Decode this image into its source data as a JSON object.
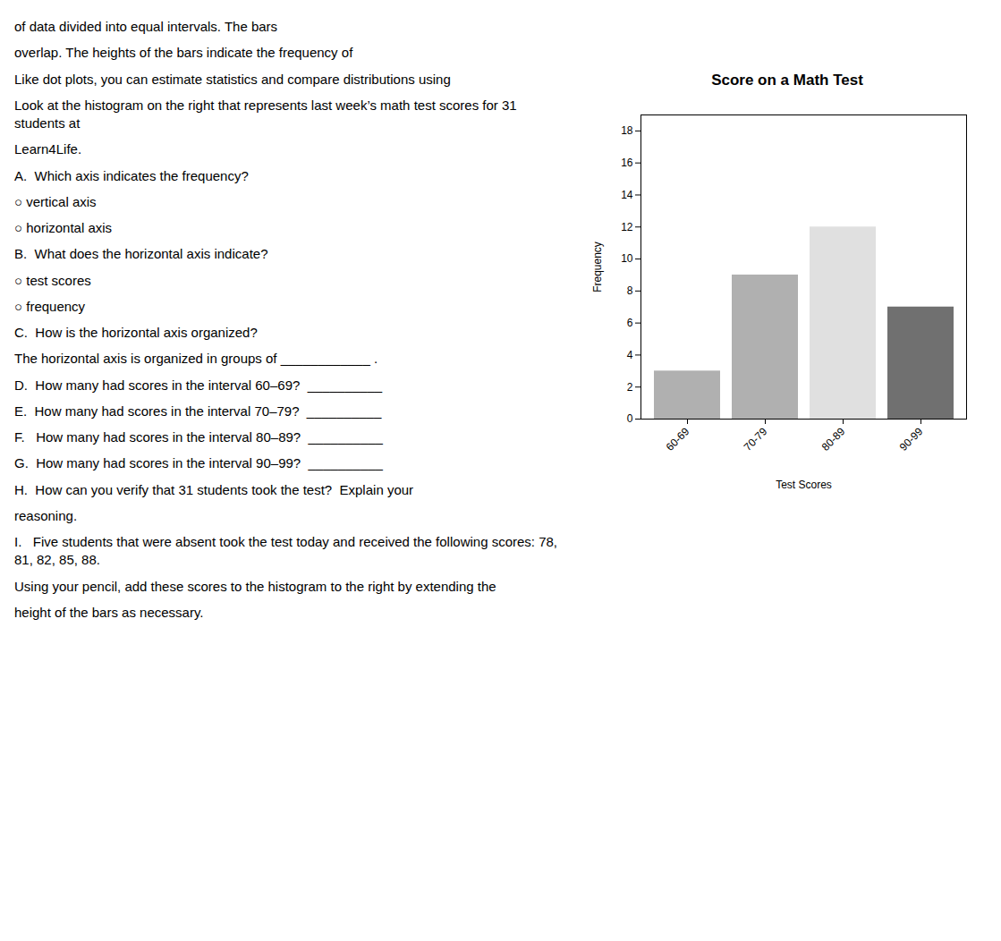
{
  "chart_data": {
    "type": "bar",
    "title": "Score on a Math Test",
    "categories": [
      "60-69",
      "70-79",
      "80-89",
      "90-99"
    ],
    "values": [
      3,
      9,
      12,
      7
    ],
    "colors": [
      "#b0b0b0",
      "#b0b0b0",
      "#e0e0e0",
      "#707070"
    ],
    "ylabel": "Frequency",
    "xlabel": "Test Scores",
    "ylim": [
      0,
      19
    ],
    "yticks": [
      0,
      2,
      4,
      6,
      8,
      10,
      12,
      14,
      16,
      18
    ],
    "grid": false,
    "annotations": [
      "of data divided into equal intervals. The bars",
      "overlap. The heights of the bars indicate the frequency of",
      "Like dot plots, you can estimate statistics and compare distributions using",
      "Look at the histogram on the right that represents last week’s math test scores for 31 students at",
      "Learn4Life.",
      "A.  Which axis indicates the frequency?",
      "○ vertical axis",
      "○ horizontal axis",
      "B.  What does the horizontal axis indicate?",
      "○ test scores",
      "○ frequency",
      "C.  How is the horizontal axis organized?",
      "The horizontal axis is organized in groups of ____________ .",
      "D.  How many had scores in the interval 60–69?  __________",
      "E.  How many had scores in the interval 70–79?  __________",
      "F.   How many had scores in the interval 80–89?  __________",
      "G.  How many had scores in the interval 90–99?  __________",
      "H.  How can you verify that 31 students took the test?  Explain your",
      "reasoning.",
      "I.   Five students that were absent took the test today and received the following scores: 78, 81, 82, 85, 88.",
      "Using your pencil, add these scores to the histogram to the right by extending the",
      "height of the bars as necessary."
    ]
  }
}
